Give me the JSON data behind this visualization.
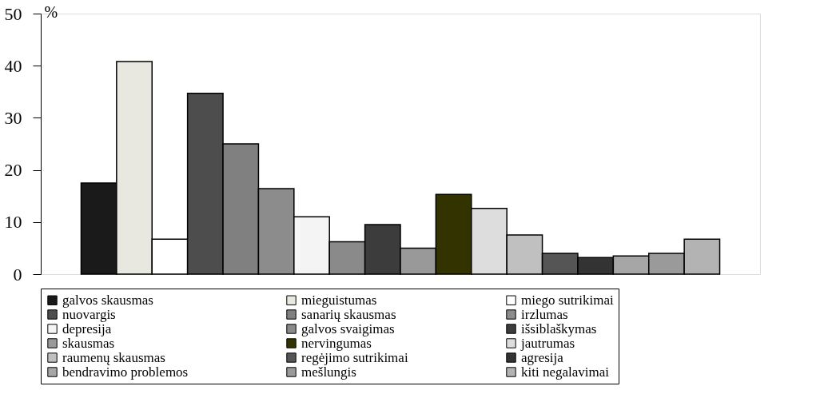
{
  "chart_data": {
    "type": "bar",
    "ylabel": "%",
    "categories": [
      null
    ],
    "ylim": [
      0,
      50
    ],
    "yticks": [
      0,
      10,
      20,
      30,
      40,
      50
    ],
    "grid": false,
    "legend": "bottom",
    "tick_labels": "y",
    "series": [
      {
        "name": "galvos skausmas",
        "color": "#1a1a1a",
        "values": [
          17.5
        ]
      },
      {
        "name": "mieguistumas",
        "color": "#e8e8e0",
        "values": [
          40.8
        ]
      },
      {
        "name": "miego sutrikimai",
        "color": "#ffffff",
        "values": [
          6.7
        ]
      },
      {
        "name": "nuovargis",
        "color": "#4d4d4d",
        "values": [
          34.7
        ]
      },
      {
        "name": "sanarių skausmas",
        "color": "#808080",
        "values": [
          25
        ]
      },
      {
        "name": "irzlumas",
        "color": "#8c8c8c",
        "values": [
          16.4
        ]
      },
      {
        "name": "depresija",
        "color": "#f4f4f4",
        "values": [
          11
        ]
      },
      {
        "name": "galvos svaigimas",
        "color": "#8a8a8a",
        "values": [
          6.2
        ]
      },
      {
        "name": "išsiblaškymas",
        "color": "#3c3c3c",
        "values": [
          9.5
        ]
      },
      {
        "name": "skausmas",
        "color": "#999999",
        "values": [
          5
        ]
      },
      {
        "name": "nervingumas",
        "color": "#333300",
        "values": [
          15.3
        ]
      },
      {
        "name": "jautrumas",
        "color": "#dddddd",
        "values": [
          12.6
        ]
      },
      {
        "name": "raumenų skausmas",
        "color": "#c0c0c0",
        "values": [
          7.5
        ]
      },
      {
        "name": "regėjimo sutrikimai",
        "color": "#555555",
        "values": [
          4
        ]
      },
      {
        "name": "agresija",
        "color": "#333333",
        "values": [
          3.2
        ]
      },
      {
        "name": "bendravimo problemos",
        "color": "#a6a6a6",
        "values": [
          3.5
        ]
      },
      {
        "name": "mešlungis",
        "color": "#9a9a9a",
        "values": [
          4
        ]
      },
      {
        "name": "kiti negalavimai",
        "color": "#b3b3b3",
        "values": [
          6.7
        ]
      }
    ]
  }
}
